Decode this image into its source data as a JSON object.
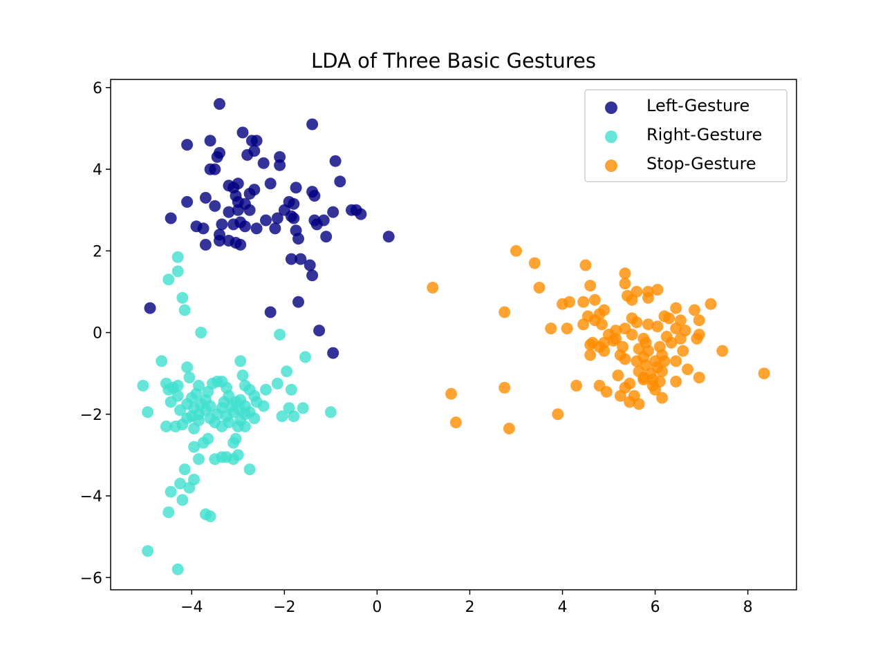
{
  "chart_data": {
    "type": "scatter",
    "title": "LDA of Three Basic Gestures",
    "xlabel": "",
    "ylabel": "",
    "xlim": [
      -5.75,
      9.05
    ],
    "ylim": [
      -6.3,
      6.2
    ],
    "xticks": [
      -4,
      -2,
      0,
      2,
      4,
      6,
      8
    ],
    "yticks": [
      -6,
      -4,
      -2,
      0,
      2,
      4,
      6
    ],
    "xtick_labels": [
      "−4",
      "−2",
      "0",
      "2",
      "4",
      "6",
      "8"
    ],
    "ytick_labels": [
      "−6",
      "−4",
      "−2",
      "0",
      "2",
      "4",
      "6"
    ],
    "grid": false,
    "legend_position": "top-right",
    "series": [
      {
        "name": "Left-Gesture",
        "color": "#000080",
        "points": [
          [
            -3.4,
            5.6
          ],
          [
            -1.4,
            5.1
          ],
          [
            -2.9,
            4.9
          ],
          [
            -4.1,
            4.6
          ],
          [
            -3.6,
            4.7
          ],
          [
            -2.7,
            4.7
          ],
          [
            -2.6,
            4.7
          ],
          [
            -3.4,
            4.4
          ],
          [
            -2.65,
            4.45
          ],
          [
            -3.45,
            4.3
          ],
          [
            -2.8,
            4.35
          ],
          [
            -2.1,
            4.3
          ],
          [
            -0.9,
            4.2
          ],
          [
            -2.45,
            4.15
          ],
          [
            -2.1,
            4.1
          ],
          [
            -3.6,
            4.0
          ],
          [
            -3.5,
            4.0
          ],
          [
            -0.8,
            3.7
          ],
          [
            -3.2,
            3.6
          ],
          [
            -3.0,
            3.65
          ],
          [
            -2.3,
            3.65
          ],
          [
            -3.1,
            3.55
          ],
          [
            -2.65,
            3.5
          ],
          [
            -1.75,
            3.55
          ],
          [
            -1.4,
            3.45
          ],
          [
            -1.35,
            3.35
          ],
          [
            -2.75,
            3.4
          ],
          [
            -3.05,
            3.35
          ],
          [
            -3.7,
            3.3
          ],
          [
            -4.1,
            3.2
          ],
          [
            -3.0,
            3.2
          ],
          [
            -2.85,
            3.15
          ],
          [
            -1.9,
            3.2
          ],
          [
            -1.8,
            3.15
          ],
          [
            -3.5,
            3.1
          ],
          [
            -3.0,
            3.0
          ],
          [
            -2.75,
            3.0
          ],
          [
            -2.0,
            3.0
          ],
          [
            -0.55,
            3.0
          ],
          [
            -0.45,
            3.0
          ],
          [
            -0.95,
            2.95
          ],
          [
            -0.35,
            2.9
          ],
          [
            -3.2,
            2.95
          ],
          [
            -1.85,
            2.85
          ],
          [
            -2.15,
            2.8
          ],
          [
            -1.8,
            2.8
          ],
          [
            -4.45,
            2.8
          ],
          [
            -1.35,
            2.75
          ],
          [
            -1.15,
            2.75
          ],
          [
            -2.4,
            2.75
          ],
          [
            -1.3,
            2.65
          ],
          [
            -2.95,
            2.7
          ],
          [
            -3.35,
            2.65
          ],
          [
            -3.1,
            2.65
          ],
          [
            -2.85,
            2.6
          ],
          [
            -3.9,
            2.6
          ],
          [
            -3.75,
            2.55
          ],
          [
            -2.6,
            2.55
          ],
          [
            -2.2,
            2.55
          ],
          [
            -1.75,
            2.5
          ],
          [
            -3.4,
            2.4
          ],
          [
            -1.1,
            2.35
          ],
          [
            0.25,
            2.35
          ],
          [
            -3.4,
            2.25
          ],
          [
            -3.2,
            2.25
          ],
          [
            -3.05,
            2.2
          ],
          [
            -3.7,
            2.15
          ],
          [
            -2.95,
            2.15
          ],
          [
            -1.7,
            2.3
          ],
          [
            -1.85,
            1.8
          ],
          [
            -1.65,
            1.8
          ],
          [
            -1.45,
            1.65
          ],
          [
            -1.4,
            1.4
          ],
          [
            -1.7,
            0.75
          ],
          [
            -2.3,
            0.5
          ],
          [
            -1.25,
            0.05
          ],
          [
            -0.95,
            -0.5
          ],
          [
            -4.9,
            0.6
          ]
        ]
      },
      {
        "name": "Right-Gesture",
        "color": "#40e0d0",
        "points": [
          [
            -4.3,
            1.85
          ],
          [
            -4.3,
            1.5
          ],
          [
            -4.5,
            1.3
          ],
          [
            -4.2,
            0.85
          ],
          [
            -4.15,
            0.55
          ],
          [
            -3.8,
            0.0
          ],
          [
            -2.1,
            -0.05
          ],
          [
            -1.55,
            -0.6
          ],
          [
            -4.65,
            -0.7
          ],
          [
            -2.95,
            -0.7
          ],
          [
            -4.1,
            -0.85
          ],
          [
            -1.95,
            -0.95
          ],
          [
            -2.9,
            -1.05
          ],
          [
            -4.05,
            -1.1
          ],
          [
            -3.45,
            -1.2
          ],
          [
            -3.35,
            -1.2
          ],
          [
            -3.55,
            -1.25
          ],
          [
            -4.55,
            -1.25
          ],
          [
            -3.85,
            -1.3
          ],
          [
            -4.3,
            -1.3
          ],
          [
            -5.05,
            -1.3
          ],
          [
            -2.85,
            -1.3
          ],
          [
            -4.4,
            -1.35
          ],
          [
            -4.5,
            -1.4
          ],
          [
            -3.25,
            -1.35
          ],
          [
            -2.75,
            -1.4
          ],
          [
            -2.4,
            -1.4
          ],
          [
            -1.85,
            -1.4
          ],
          [
            -2.15,
            -1.25
          ],
          [
            -3.65,
            -1.45
          ],
          [
            -3.9,
            -1.5
          ],
          [
            -4.3,
            -1.55
          ],
          [
            -3.2,
            -1.55
          ],
          [
            -2.65,
            -1.55
          ],
          [
            -4.0,
            -1.6
          ],
          [
            -3.7,
            -1.65
          ],
          [
            -2.95,
            -1.65
          ],
          [
            -4.45,
            -1.7
          ],
          [
            -3.3,
            -1.7
          ],
          [
            -3.05,
            -1.7
          ],
          [
            -2.6,
            -1.7
          ],
          [
            -4.1,
            -1.75
          ],
          [
            -3.8,
            -1.75
          ],
          [
            -3.6,
            -1.8
          ],
          [
            -3.15,
            -1.8
          ],
          [
            -2.85,
            -1.8
          ],
          [
            -2.45,
            -1.8
          ],
          [
            -1.9,
            -1.85
          ],
          [
            -1.6,
            -1.85
          ],
          [
            -3.95,
            -1.85
          ],
          [
            -3.35,
            -1.85
          ],
          [
            -2.95,
            -1.9
          ],
          [
            -4.25,
            -1.9
          ],
          [
            -3.7,
            -1.9
          ],
          [
            -4.95,
            -1.95
          ],
          [
            -3.1,
            -1.95
          ],
          [
            -2.75,
            -1.95
          ],
          [
            -1.0,
            -1.95
          ],
          [
            -3.85,
            -2.0
          ],
          [
            -3.45,
            -2.0
          ],
          [
            -2.85,
            -2.0
          ],
          [
            -2.05,
            -2.05
          ],
          [
            -4.0,
            -2.05
          ],
          [
            -3.25,
            -2.05
          ],
          [
            -3.6,
            -2.1
          ],
          [
            -4.1,
            -2.1
          ],
          [
            -2.95,
            -2.15
          ],
          [
            -1.8,
            -2.05
          ],
          [
            -3.85,
            -2.15
          ],
          [
            -2.65,
            -2.1
          ],
          [
            -3.5,
            -2.2
          ],
          [
            -3.2,
            -2.2
          ],
          [
            -4.2,
            -2.25
          ],
          [
            -4.35,
            -2.3
          ],
          [
            -4.55,
            -2.3
          ],
          [
            -3.0,
            -2.3
          ],
          [
            -2.85,
            -2.3
          ],
          [
            -3.35,
            -2.3
          ],
          [
            -3.95,
            -2.35
          ],
          [
            -3.05,
            -2.6
          ],
          [
            -3.65,
            -2.6
          ],
          [
            -3.75,
            -2.7
          ],
          [
            -3.1,
            -2.7
          ],
          [
            -3.95,
            -2.8
          ],
          [
            -3.0,
            -3.0
          ],
          [
            -3.25,
            -3.05
          ],
          [
            -3.35,
            -3.05
          ],
          [
            -3.1,
            -3.1
          ],
          [
            -3.85,
            -3.1
          ],
          [
            -3.5,
            -3.1
          ],
          [
            -2.75,
            -3.35
          ],
          [
            -4.15,
            -3.35
          ],
          [
            -3.95,
            -3.6
          ],
          [
            -4.25,
            -3.7
          ],
          [
            -4.05,
            -3.8
          ],
          [
            -4.45,
            -3.9
          ],
          [
            -4.2,
            -4.1
          ],
          [
            -4.5,
            -4.4
          ],
          [
            -3.7,
            -4.45
          ],
          [
            -3.6,
            -4.5
          ],
          [
            -4.95,
            -5.35
          ],
          [
            -4.3,
            -5.8
          ]
        ]
      },
      {
        "name": "Stop-Gesture",
        "color": "#ff8c00",
        "points": [
          [
            3.0,
            2.0
          ],
          [
            3.4,
            1.7
          ],
          [
            4.5,
            1.65
          ],
          [
            5.35,
            1.45
          ],
          [
            5.35,
            1.2
          ],
          [
            4.6,
            1.15
          ],
          [
            1.2,
            1.1
          ],
          [
            3.5,
            1.1
          ],
          [
            5.85,
            1.0
          ],
          [
            5.6,
            1.0
          ],
          [
            6.05,
            1.05
          ],
          [
            5.4,
            0.9
          ],
          [
            5.5,
            0.8
          ],
          [
            5.85,
            0.85
          ],
          [
            4.45,
            0.75
          ],
          [
            4.7,
            0.8
          ],
          [
            4.0,
            0.7
          ],
          [
            4.15,
            0.75
          ],
          [
            7.2,
            0.7
          ],
          [
            6.85,
            0.55
          ],
          [
            6.45,
            0.6
          ],
          [
            6.2,
            0.4
          ],
          [
            4.8,
            0.45
          ],
          [
            4.9,
            0.55
          ],
          [
            2.75,
            0.5
          ],
          [
            4.55,
            0.4
          ],
          [
            4.7,
            0.3
          ],
          [
            5.5,
            0.35
          ],
          [
            6.3,
            0.35
          ],
          [
            6.55,
            0.3
          ],
          [
            6.95,
            0.3
          ],
          [
            4.45,
            0.2
          ],
          [
            4.85,
            0.2
          ],
          [
            5.6,
            0.25
          ],
          [
            5.85,
            0.2
          ],
          [
            6.05,
            0.15
          ],
          [
            3.75,
            0.1
          ],
          [
            4.1,
            0.1
          ],
          [
            5.15,
            0.05
          ],
          [
            5.35,
            0.1
          ],
          [
            6.45,
            0.1
          ],
          [
            6.65,
            0.05
          ],
          [
            5.0,
            -0.05
          ],
          [
            5.5,
            -0.05
          ],
          [
            6.25,
            -0.1
          ],
          [
            6.55,
            -0.15
          ],
          [
            6.95,
            -0.05
          ],
          [
            5.15,
            -0.15
          ],
          [
            5.75,
            -0.15
          ],
          [
            6.9,
            -0.15
          ],
          [
            4.65,
            -0.25
          ],
          [
            4.9,
            -0.25
          ],
          [
            5.1,
            -0.2
          ],
          [
            4.6,
            -0.3
          ],
          [
            5.8,
            -0.25
          ],
          [
            6.35,
            -0.25
          ],
          [
            4.8,
            -0.35
          ],
          [
            5.3,
            -0.35
          ],
          [
            6.1,
            -0.35
          ],
          [
            4.9,
            -0.45
          ],
          [
            5.65,
            -0.4
          ],
          [
            5.85,
            -0.45
          ],
          [
            6.6,
            -0.45
          ],
          [
            7.45,
            -0.45
          ],
          [
            4.6,
            -0.55
          ],
          [
            5.25,
            -0.55
          ],
          [
            5.75,
            -0.6
          ],
          [
            6.15,
            -0.55
          ],
          [
            6.0,
            -0.7
          ],
          [
            5.35,
            -0.65
          ],
          [
            5.6,
            -0.7
          ],
          [
            6.2,
            -0.7
          ],
          [
            6.45,
            -0.7
          ],
          [
            5.8,
            -0.8
          ],
          [
            6.05,
            -0.85
          ],
          [
            6.7,
            -0.9
          ],
          [
            5.65,
            -0.95
          ],
          [
            5.9,
            -1.0
          ],
          [
            6.15,
            -0.95
          ],
          [
            8.35,
            -1.0
          ],
          [
            5.2,
            -1.05
          ],
          [
            5.75,
            -1.1
          ],
          [
            6.95,
            -1.1
          ],
          [
            5.95,
            -1.15
          ],
          [
            5.75,
            -1.15
          ],
          [
            6.1,
            -1.2
          ],
          [
            6.45,
            -1.2
          ],
          [
            5.45,
            -1.25
          ],
          [
            4.3,
            -1.3
          ],
          [
            4.8,
            -1.3
          ],
          [
            5.95,
            -1.3
          ],
          [
            2.75,
            -1.35
          ],
          [
            4.95,
            -1.45
          ],
          [
            5.35,
            -1.35
          ],
          [
            6.0,
            -1.4
          ],
          [
            1.6,
            -1.5
          ],
          [
            5.25,
            -1.55
          ],
          [
            5.55,
            -1.55
          ],
          [
            6.15,
            -1.6
          ],
          [
            5.45,
            -1.7
          ],
          [
            5.65,
            -1.75
          ],
          [
            3.9,
            -2.0
          ],
          [
            1.7,
            -2.2
          ],
          [
            2.85,
            -2.35
          ]
        ]
      }
    ]
  }
}
